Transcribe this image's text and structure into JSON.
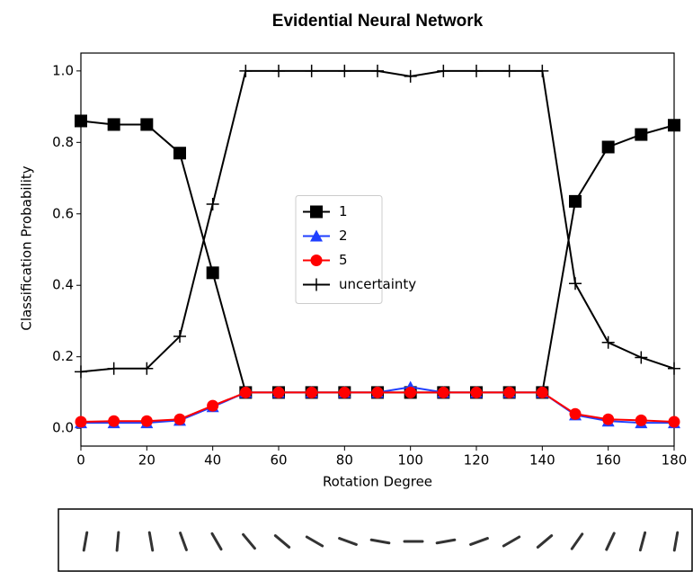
{
  "chart_data": {
    "type": "line",
    "title": "Evidential Neural Network",
    "x_label": "Rotation Degree",
    "y_label": "Classification Probability",
    "x": [
      0,
      10,
      20,
      30,
      40,
      50,
      60,
      70,
      80,
      90,
      100,
      110,
      120,
      130,
      140,
      150,
      160,
      170,
      180
    ],
    "series": [
      {
        "name": "1",
        "color": "#000000",
        "marker": "square",
        "values": [
          0.86,
          0.85,
          0.85,
          0.77,
          0.435,
          0.1,
          0.1,
          0.1,
          0.1,
          0.1,
          0.1,
          0.1,
          0.1,
          0.1,
          0.1,
          0.635,
          0.787,
          0.822,
          0.848
        ]
      },
      {
        "name": "2",
        "color": "#1f3fff",
        "marker": "triangle",
        "values": [
          0.015,
          0.015,
          0.015,
          0.022,
          0.06,
          0.1,
          0.1,
          0.1,
          0.1,
          0.1,
          0.115,
          0.1,
          0.1,
          0.1,
          0.1,
          0.037,
          0.02,
          0.015,
          0.015
        ]
      },
      {
        "name": "5",
        "color": "#ff0000",
        "marker": "circle",
        "values": [
          0.018,
          0.02,
          0.02,
          0.025,
          0.063,
          0.1,
          0.1,
          0.1,
          0.1,
          0.1,
          0.1,
          0.1,
          0.1,
          0.1,
          0.1,
          0.04,
          0.025,
          0.022,
          0.018
        ]
      },
      {
        "name": "uncertainty",
        "color": "#000000",
        "marker": "plus",
        "values": [
          0.158,
          0.167,
          0.167,
          0.257,
          0.627,
          1,
          1,
          1,
          1,
          1,
          0.985,
          1,
          1,
          1,
          1,
          0.405,
          0.24,
          0.198,
          0.167
        ]
      }
    ],
    "xlim": [
      0,
      180
    ],
    "xticks": [
      0,
      20,
      40,
      60,
      80,
      100,
      120,
      140,
      160,
      180
    ],
    "ylim": [
      -0.05,
      1.05
    ],
    "yticks": [
      {
        "value": 0,
        "label": "0.0"
      },
      0.2,
      0.4,
      0.6,
      0.8,
      {
        "value": 1,
        "label": "1.0"
      }
    ],
    "legend": "center"
  }
}
